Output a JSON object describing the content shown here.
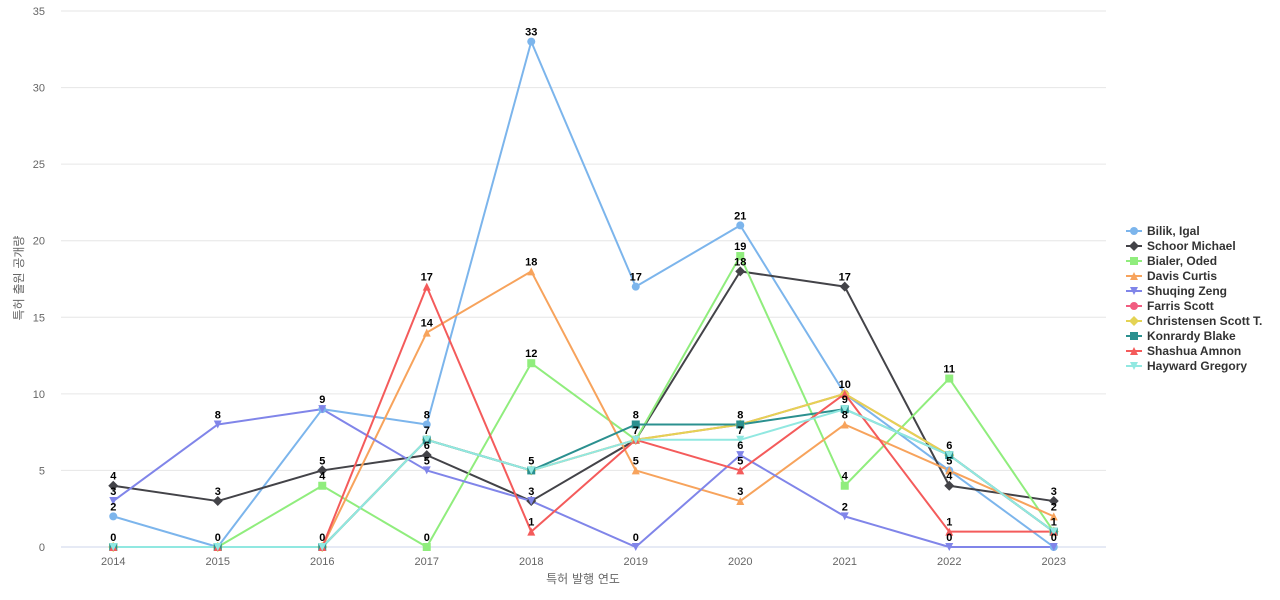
{
  "chart_data": {
    "type": "line",
    "title": "",
    "xlabel": "특허 발행 연도",
    "ylabel": "특허 출원 공개량",
    "categories": [
      "2014",
      "2015",
      "2016",
      "2017",
      "2018",
      "2019",
      "2020",
      "2021",
      "2022",
      "2023"
    ],
    "ylim": [
      0,
      35
    ],
    "yticks": [
      0,
      5,
      10,
      15,
      20,
      25,
      30,
      35
    ],
    "grid": true,
    "legend_position": "right",
    "series": [
      {
        "name": "Bilik, Igal",
        "color": "#7cb5ec",
        "marker": "circle",
        "values": [
          2,
          0,
          9,
          8,
          33,
          17,
          21,
          10,
          5,
          0
        ]
      },
      {
        "name": "Schoor Michael",
        "color": "#434348",
        "marker": "diamond",
        "values": [
          4,
          3,
          5,
          6,
          3,
          7,
          18,
          17,
          4,
          3
        ]
      },
      {
        "name": "Bialer, Oded",
        "color": "#90ed7d",
        "marker": "square",
        "values": [
          0,
          0,
          4,
          0,
          12,
          7,
          19,
          4,
          11,
          1
        ]
      },
      {
        "name": "Davis Curtis",
        "color": "#f7a35c",
        "marker": "triangle",
        "values": [
          0,
          0,
          0,
          14,
          18,
          5,
          3,
          8,
          5,
          2
        ]
      },
      {
        "name": "Shuqing Zeng",
        "color": "#8085e9",
        "marker": "triangle-down",
        "values": [
          3,
          8,
          9,
          5,
          3,
          0,
          6,
          2,
          0,
          0
        ]
      },
      {
        "name": "Farris Scott",
        "color": "#f15c80",
        "marker": "circle",
        "values": [
          0,
          0,
          0,
          7,
          5,
          7,
          8,
          10,
          6,
          1
        ]
      },
      {
        "name": "Christensen Scott T.",
        "color": "#e4d354",
        "marker": "diamond",
        "values": [
          0,
          0,
          0,
          7,
          5,
          7,
          8,
          10,
          6,
          1
        ]
      },
      {
        "name": "Konrardy Blake",
        "color": "#2b908f",
        "marker": "square",
        "values": [
          0,
          0,
          0,
          7,
          5,
          8,
          8,
          9,
          6,
          1
        ]
      },
      {
        "name": "Shashua Amnon",
        "color": "#f45b5b",
        "marker": "triangle",
        "values": [
          0,
          0,
          0,
          17,
          1,
          7,
          5,
          10,
          1,
          1
        ]
      },
      {
        "name": "Hayward Gregory",
        "color": "#91e8e1",
        "marker": "triangle-down",
        "values": [
          0,
          0,
          0,
          7,
          5,
          7,
          7,
          9,
          6,
          1
        ]
      }
    ],
    "data_labels": [
      {
        "category": "2014",
        "values": [
          4,
          3,
          2,
          0
        ]
      },
      {
        "category": "2015",
        "values": [
          8,
          3,
          0
        ]
      },
      {
        "category": "2016",
        "values": [
          9,
          5,
          4,
          0
        ]
      },
      {
        "category": "2017",
        "values": [
          17,
          14,
          8,
          7,
          6,
          5,
          0
        ]
      },
      {
        "category": "2018",
        "values": [
          33,
          18,
          12,
          5,
          3,
          1
        ]
      },
      {
        "category": "2019",
        "values": [
          17,
          8,
          7,
          5,
          0
        ]
      },
      {
        "category": "2020",
        "values": [
          21,
          19,
          18,
          8,
          7,
          6,
          5,
          3
        ]
      },
      {
        "category": "2021",
        "values": [
          17,
          10,
          9,
          8,
          4,
          2
        ]
      },
      {
        "category": "2022",
        "values": [
          11,
          6,
          5,
          4,
          1,
          0
        ]
      },
      {
        "category": "2023",
        "values": [
          3,
          2,
          1,
          0
        ]
      }
    ]
  }
}
